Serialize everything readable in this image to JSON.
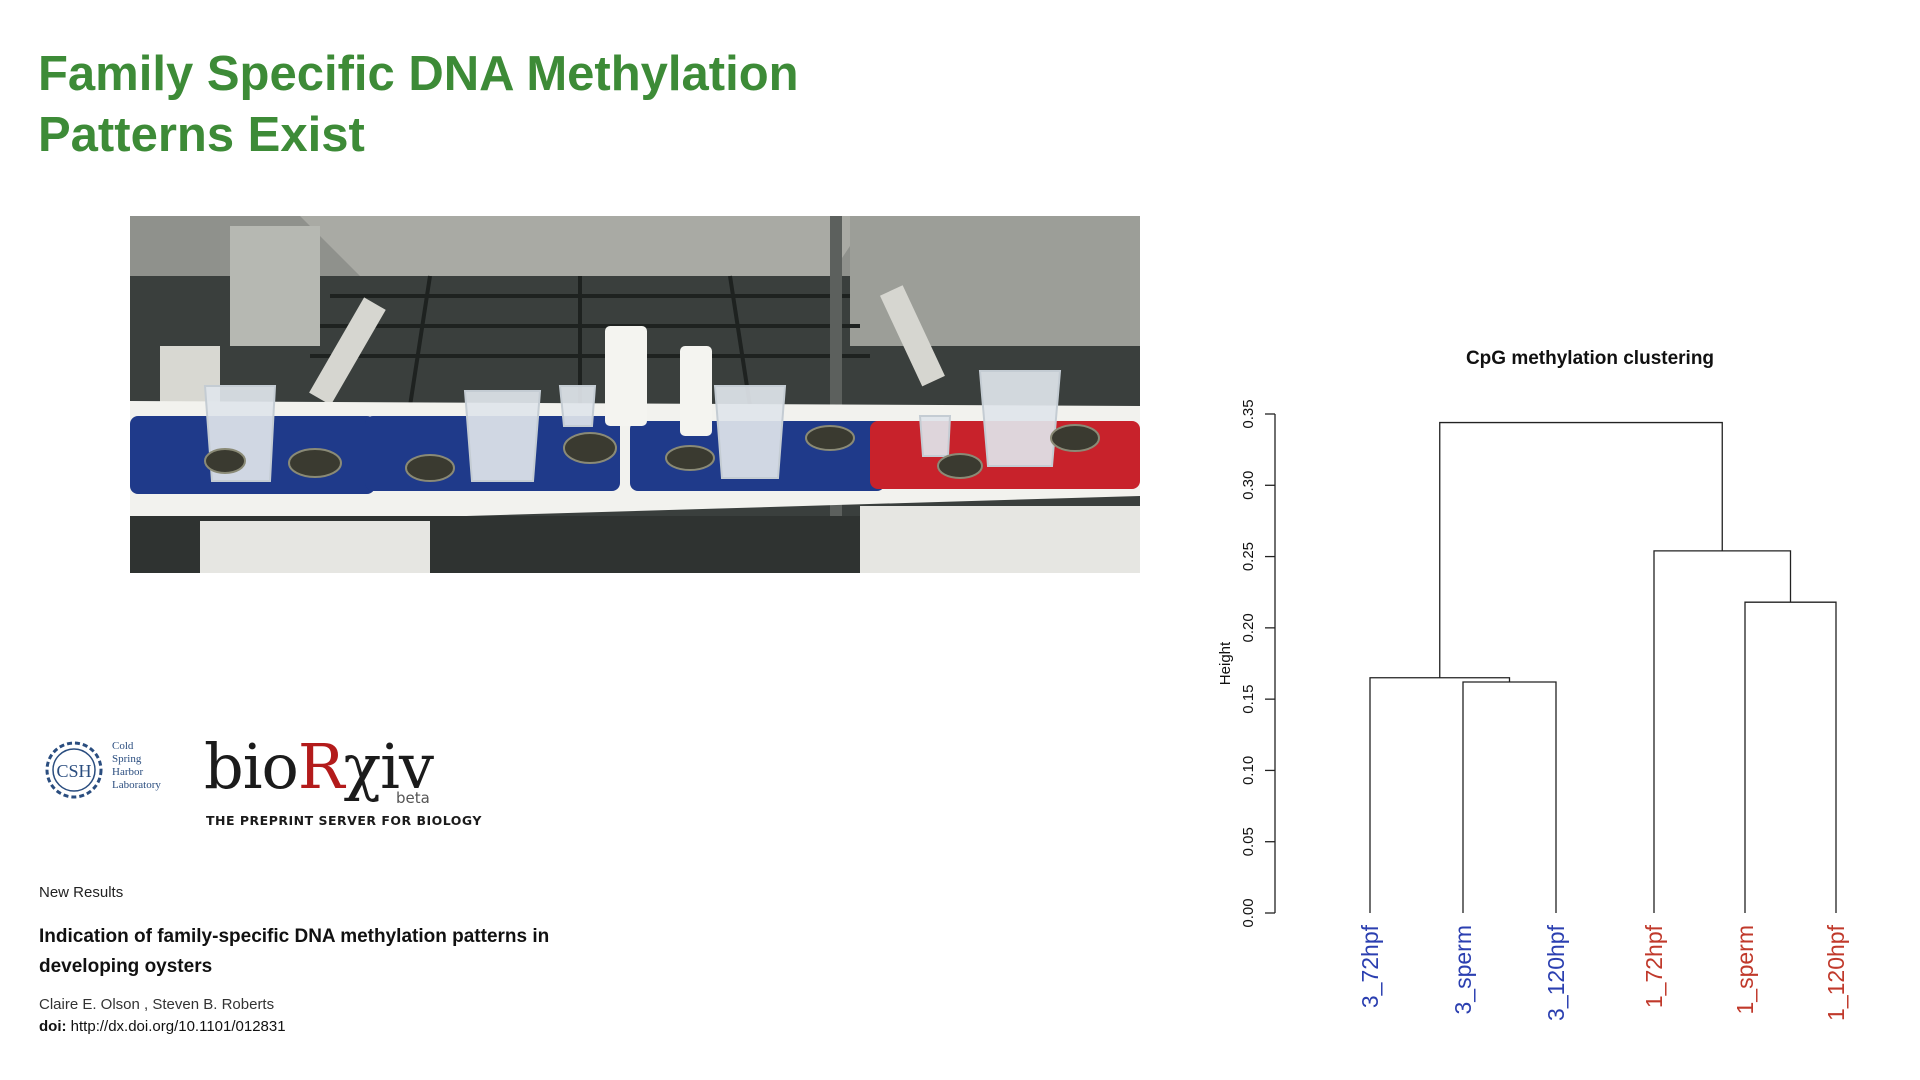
{
  "slide": {
    "title_line1": "Family Specific DNA Methylation",
    "title_line2": "Patterns Exist",
    "title_color": "#3d8b37"
  },
  "logos": {
    "csh_initials": "CSH",
    "csh_name_lines": [
      "Cold",
      "Spring",
      "Harbor",
      "Laboratory"
    ],
    "biorxiv_prefix": "bio",
    "biorxiv_r": "R",
    "biorxiv_suffix": "χiv",
    "biorxiv_beta": "beta",
    "biorxiv_tagline": "THE PREPRINT SERVER FOR BIOLOGY"
  },
  "paper": {
    "section": "New Results",
    "title": "Indication of family-specific DNA methylation patterns in developing oysters",
    "authors": "Claire E. Olson , Steven B. Roberts",
    "doi_label": "doi:",
    "doi_value": "http://dx.doi.org/10.1101/012831"
  },
  "photo": {
    "tray_colors": [
      "#1f3a8a",
      "#1f3a8a",
      "#1f3a8a",
      "#c8222b"
    ]
  },
  "chart_data": {
    "type": "dendrogram",
    "title": "CpG methylation clustering",
    "ylabel": "Height",
    "ylim": [
      0,
      0.35
    ],
    "yticks": [
      0.0,
      0.05,
      0.1,
      0.15,
      0.2,
      0.25,
      0.3,
      0.35
    ],
    "ytick_labels": [
      "0.00",
      "0.05",
      "0.10",
      "0.15",
      "0.20",
      "0.25",
      "0.30",
      "0.35"
    ],
    "leaves": [
      {
        "label": "3_72hpf",
        "color": "#2b3fb0"
      },
      {
        "label": "3_sperm",
        "color": "#2b3fb0"
      },
      {
        "label": "3_120hpf",
        "color": "#2b3fb0"
      },
      {
        "label": "1_72hpf",
        "color": "#c0392b"
      },
      {
        "label": "1_sperm",
        "color": "#c0392b"
      },
      {
        "label": "1_120hpf",
        "color": "#c0392b"
      }
    ],
    "merges": [
      {
        "left": "leaf:1",
        "right": "leaf:2",
        "height": 0.162
      },
      {
        "left": "leaf:0",
        "right": "node:0",
        "height": 0.165
      },
      {
        "left": "leaf:4",
        "right": "leaf:5",
        "height": 0.218
      },
      {
        "left": "leaf:3",
        "right": "node:2",
        "height": 0.254
      },
      {
        "left": "node:1",
        "right": "node:3",
        "height": 0.344
      }
    ]
  }
}
